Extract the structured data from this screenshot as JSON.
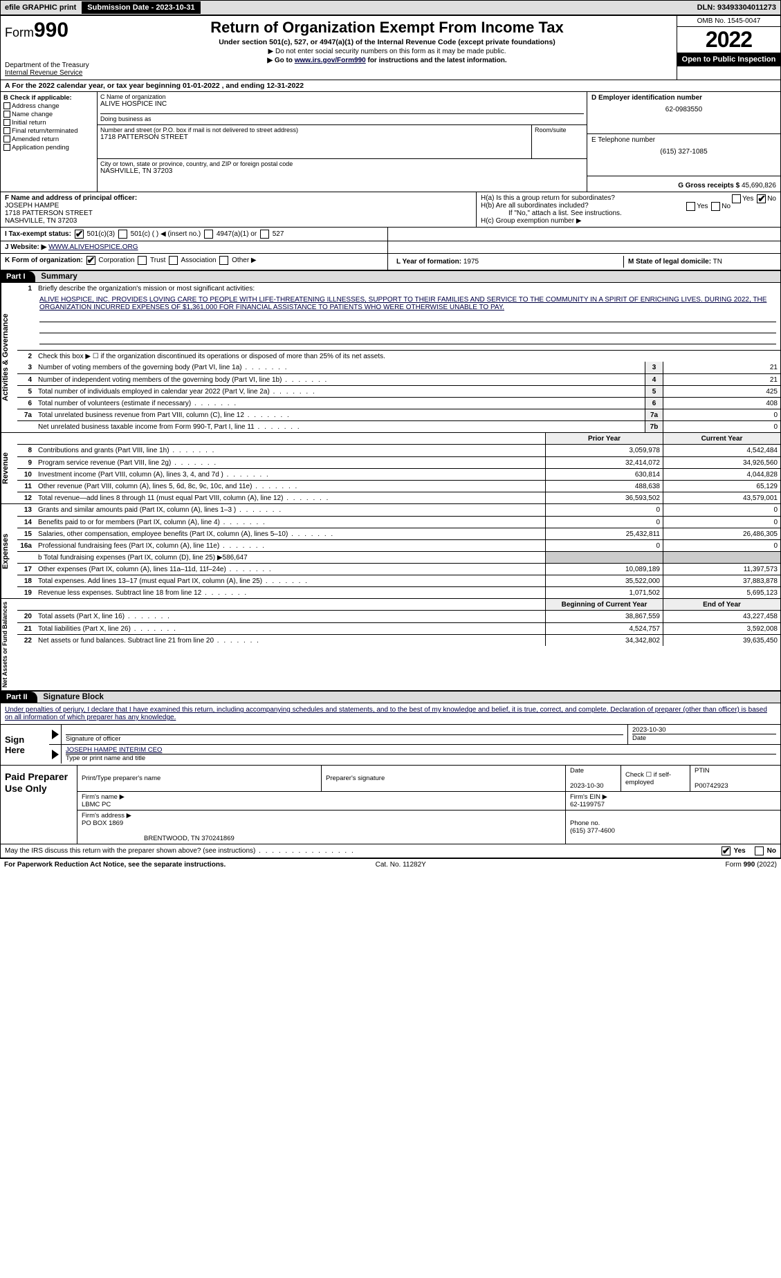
{
  "topbar": {
    "efile_label": "efile GRAPHIC print",
    "submission_label": "Submission Date - 2023-10-31",
    "dln_label": "DLN: 93493304011273"
  },
  "header": {
    "form_prefix": "Form",
    "form_number": "990",
    "dept": "Department of the Treasury",
    "irs": "Internal Revenue Service",
    "title": "Return of Organization Exempt From Income Tax",
    "subtitle": "Under section 501(c), 527, or 4947(a)(1) of the Internal Revenue Code (except private foundations)",
    "note1": "▶ Do not enter social security numbers on this form as it may be made public.",
    "note2_pre": "▶ Go to ",
    "note2_link": "www.irs.gov/Form990",
    "note2_post": " for instructions and the latest information.",
    "omb": "OMB No. 1545-0047",
    "year": "2022",
    "open": "Open to Public Inspection"
  },
  "line_a": "A For the 2022 calendar year, or tax year beginning 01-01-2022    , and ending 12-31-2022",
  "box_b": {
    "title": "B Check if applicable:",
    "opts": [
      "Address change",
      "Name change",
      "Initial return",
      "Final return/terminated",
      "Amended return",
      "Application pending"
    ]
  },
  "box_c": {
    "name_lbl": "C Name of organization",
    "name": "ALIVE HOSPICE INC",
    "dba_lbl": "Doing business as",
    "dba": "",
    "street_lbl": "Number and street (or P.O. box if mail is not delivered to street address)",
    "room_lbl": "Room/suite",
    "street": "1718 PATTERSON STREET",
    "city_lbl": "City or town, state or province, country, and ZIP or foreign postal code",
    "city": "NASHVILLE, TN  37203"
  },
  "box_d": {
    "lbl": "D Employer identification number",
    "val": "62-0983550"
  },
  "box_e": {
    "lbl": "E Telephone number",
    "val": "(615) 327-1085"
  },
  "box_g": {
    "lbl": "G Gross receipts $",
    "val": "45,690,826"
  },
  "box_f": {
    "lbl": "F Name and address of principal officer:",
    "name": "JOSEPH HAMPE",
    "addr1": "1718 PATTERSON STREET",
    "addr2": "NASHVILLE, TN 37203"
  },
  "box_h": {
    "ha": "H(a)  Is this a group return for subordinates?",
    "ha_yes": "Yes",
    "ha_no": "No",
    "hb": "H(b)  Are all subordinates included?",
    "hb_yes": "Yes",
    "hb_no": "No",
    "hb_note": "If \"No,\" attach a list. See instructions.",
    "hc": "H(c)  Group exemption number ▶"
  },
  "row_i": {
    "lbl": "I  Tax-exempt status:",
    "o1": "501(c)(3)",
    "o2": "501(c) (  ) ◀ (insert no.)",
    "o3": "4947(a)(1) or",
    "o4": "527"
  },
  "row_j": {
    "lbl": "J  Website: ▶",
    "val": "WWW.ALIVEHOSPICE.ORG"
  },
  "row_k": {
    "lbl": "K Form of organization:",
    "o1": "Corporation",
    "o2": "Trust",
    "o3": "Association",
    "o4": "Other ▶"
  },
  "row_l": {
    "lbl": "L Year of formation:",
    "val": "1975"
  },
  "row_m": {
    "lbl": "M State of legal domicile:",
    "val": "TN"
  },
  "part1": {
    "label": "Part I",
    "title": "Summary"
  },
  "summary": {
    "tabs": {
      "ag": "Activities & Governance",
      "rev": "Revenue",
      "exp": "Expenses",
      "na": "Net Assets or Fund Balances"
    },
    "l1_lbl": "Briefly describe the organization's mission or most significant activities:",
    "l1_text": "ALIVE HOSPICE, INC. PROVIDES LOVING CARE TO PEOPLE WITH LIFE-THREATENING ILLNESSES, SUPPORT TO THEIR FAMILIES AND SERVICE TO THE COMMUNITY IN A SPIRIT OF ENRICHING LIVES. DURING 2022, THE ORGANIZATION INCURRED EXPENSES OF $1,361,000 FOR FINANCIAL ASSISTANCE TO PATIENTS WHO WERE OTHERWISE UNABLE TO PAY.",
    "l2": "Check this box ▶ ☐  if the organization discontinued its operations or disposed of more than 25% of its net assets.",
    "lines_single": [
      {
        "n": "3",
        "t": "Number of voting members of the governing body (Part VI, line 1a)",
        "box": "3",
        "v": "21"
      },
      {
        "n": "4",
        "t": "Number of independent voting members of the governing body (Part VI, line 1b)",
        "box": "4",
        "v": "21"
      },
      {
        "n": "5",
        "t": "Total number of individuals employed in calendar year 2022 (Part V, line 2a)",
        "box": "5",
        "v": "425"
      },
      {
        "n": "6",
        "t": "Total number of volunteers (estimate if necessary)",
        "box": "6",
        "v": "408"
      },
      {
        "n": "7a",
        "t": "Total unrelated business revenue from Part VIII, column (C), line 12",
        "box": "7a",
        "v": "0"
      },
      {
        "n": "",
        "t": "Net unrelated business taxable income from Form 990-T, Part I, line 11",
        "box": "7b",
        "v": "0"
      }
    ],
    "col_hdr": {
      "prior": "Prior Year",
      "current": "Current Year"
    },
    "revenue": [
      {
        "n": "8",
        "t": "Contributions and grants (Part VIII, line 1h)",
        "p": "3,059,978",
        "c": "4,542,484"
      },
      {
        "n": "9",
        "t": "Program service revenue (Part VIII, line 2g)",
        "p": "32,414,072",
        "c": "34,926,560"
      },
      {
        "n": "10",
        "t": "Investment income (Part VIII, column (A), lines 3, 4, and 7d )",
        "p": "630,814",
        "c": "4,044,828"
      },
      {
        "n": "11",
        "t": "Other revenue (Part VIII, column (A), lines 5, 6d, 8c, 9c, 10c, and 11e)",
        "p": "488,638",
        "c": "65,129"
      },
      {
        "n": "12",
        "t": "Total revenue—add lines 8 through 11 (must equal Part VIII, column (A), line 12)",
        "p": "36,593,502",
        "c": "43,579,001"
      }
    ],
    "expenses": [
      {
        "n": "13",
        "t": "Grants and similar amounts paid (Part IX, column (A), lines 1–3 )",
        "p": "0",
        "c": "0"
      },
      {
        "n": "14",
        "t": "Benefits paid to or for members (Part IX, column (A), line 4)",
        "p": "0",
        "c": "0"
      },
      {
        "n": "15",
        "t": "Salaries, other compensation, employee benefits (Part IX, column (A), lines 5–10)",
        "p": "25,432,811",
        "c": "26,486,305"
      },
      {
        "n": "16a",
        "t": "Professional fundraising fees (Part IX, column (A), line 11e)",
        "p": "0",
        "c": "0"
      }
    ],
    "l16b": "b  Total fundraising expenses (Part IX, column (D), line 25) ▶586,647",
    "expenses2": [
      {
        "n": "17",
        "t": "Other expenses (Part IX, column (A), lines 11a–11d, 11f–24e)",
        "p": "10,089,189",
        "c": "11,397,573"
      },
      {
        "n": "18",
        "t": "Total expenses. Add lines 13–17 (must equal Part IX, column (A), line 25)",
        "p": "35,522,000",
        "c": "37,883,878"
      },
      {
        "n": "19",
        "t": "Revenue less expenses. Subtract line 18 from line 12",
        "p": "1,071,502",
        "c": "5,695,123"
      }
    ],
    "na_hdr": {
      "beg": "Beginning of Current Year",
      "end": "End of Year"
    },
    "netassets": [
      {
        "n": "20",
        "t": "Total assets (Part X, line 16)",
        "p": "38,867,559",
        "c": "43,227,458"
      },
      {
        "n": "21",
        "t": "Total liabilities (Part X, line 26)",
        "p": "4,524,757",
        "c": "3,592,008"
      },
      {
        "n": "22",
        "t": "Net assets or fund balances. Subtract line 21 from line 20",
        "p": "34,342,802",
        "c": "39,635,450"
      }
    ]
  },
  "part2": {
    "label": "Part II",
    "title": "Signature Block"
  },
  "sig": {
    "intro": "Under penalties of perjury, I declare that I have examined this return, including accompanying schedules and statements, and to the best of my knowledge and belief, it is true, correct, and complete. Declaration of preparer (other than officer) is based on all information of which preparer has any knowledge.",
    "sign_here": "Sign Here",
    "sig_officer_lbl": "Signature of officer",
    "date_lbl": "Date",
    "date_val": "2023-10-30",
    "name_title": "JOSEPH HAMPE  INTERIM CEO",
    "name_title_lbl": "Type or print name and title"
  },
  "prep": {
    "label": "Paid Preparer Use Only",
    "h1": "Print/Type preparer's name",
    "h2": "Preparer's signature",
    "h3": "Date",
    "h3v": "2023-10-30",
    "h4": "Check ☐ if self-employed",
    "h5": "PTIN",
    "h5v": "P00742923",
    "firm_lbl": "Firm's name   ▶",
    "firm": "LBMC PC",
    "ein_lbl": "Firm's EIN ▶",
    "ein": "62-1199757",
    "addr_lbl": "Firm's address ▶",
    "addr1": "PO BOX 1869",
    "addr2": "BRENTWOOD, TN  370241869",
    "phone_lbl": "Phone no.",
    "phone": "(615) 377-4600"
  },
  "discuss": {
    "q": "May the IRS discuss this return with the preparer shown above? (see instructions)",
    "yes": "Yes",
    "no": "No"
  },
  "footer": {
    "left": "For Paperwork Reduction Act Notice, see the separate instructions.",
    "mid": "Cat. No. 11282Y",
    "right": "Form 990 (2022)"
  }
}
